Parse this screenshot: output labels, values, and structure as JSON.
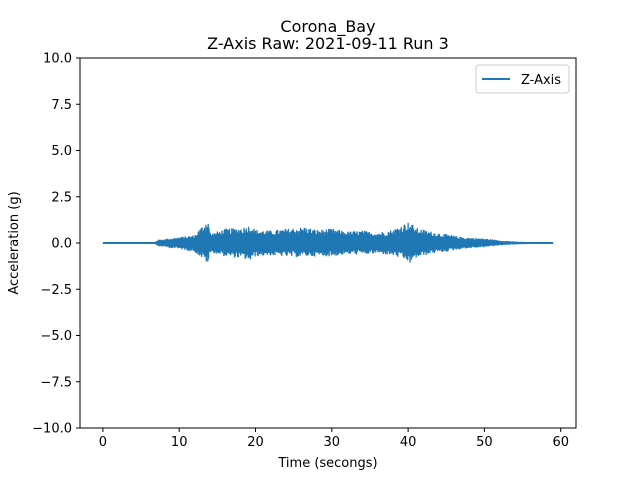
{
  "chart_data": {
    "type": "line",
    "title": "Corona_Bay",
    "subtitle": "Z-Axis Raw: 2021-09-11 Run 3",
    "xlabel": "Time (secongs)",
    "ylabel": "Acceleration (g)",
    "xlim": [
      -3.0,
      62.0
    ],
    "ylim": [
      -10.0,
      10.0
    ],
    "xticks": [
      0,
      10,
      20,
      30,
      40,
      50,
      60
    ],
    "xtick_labels": [
      "0",
      "10",
      "20",
      "30",
      "40",
      "50",
      "60"
    ],
    "yticks": [
      -10.0,
      -7.5,
      -5.0,
      -2.5,
      0.0,
      2.5,
      5.0,
      7.5,
      10.0
    ],
    "ytick_labels": [
      "−10.0",
      "−7.5",
      "−5.0",
      "−2.5",
      "0.0",
      "2.5",
      "5.0",
      "7.5",
      "10.0"
    ],
    "grid": false,
    "legend_position": "top-right",
    "series": [
      {
        "name": "Z-Axis",
        "color": "#1f77b4",
        "x": [
          0,
          6.8,
          7.2,
          10,
          12,
          13.8,
          14.0,
          14.3,
          16,
          18,
          19.4,
          20,
          22,
          25,
          26.5,
          28,
          30,
          32,
          34,
          36,
          38,
          39.8,
          40.3,
          41,
          43,
          45,
          47,
          50,
          52,
          54,
          56,
          59
        ],
        "upper": [
          0.0,
          0.02,
          0.15,
          0.3,
          0.4,
          1.3,
          0.6,
          0.5,
          0.75,
          0.8,
          0.95,
          0.7,
          0.65,
          0.8,
          0.85,
          0.7,
          0.75,
          0.6,
          0.65,
          0.55,
          0.7,
          1.1,
          1.1,
          0.8,
          0.6,
          0.45,
          0.3,
          0.22,
          0.12,
          0.05,
          0.02,
          0.0
        ],
        "lower": [
          0.0,
          -0.02,
          -0.15,
          -0.3,
          -0.45,
          -1.1,
          -0.6,
          -0.5,
          -0.7,
          -0.8,
          -0.95,
          -0.7,
          -0.65,
          -0.75,
          -0.7,
          -0.7,
          -0.7,
          -0.6,
          -0.6,
          -0.55,
          -0.65,
          -0.95,
          -1.1,
          -0.8,
          -0.55,
          -0.45,
          -0.3,
          -0.2,
          -0.1,
          -0.05,
          -0.02,
          0.0
        ]
      }
    ]
  }
}
